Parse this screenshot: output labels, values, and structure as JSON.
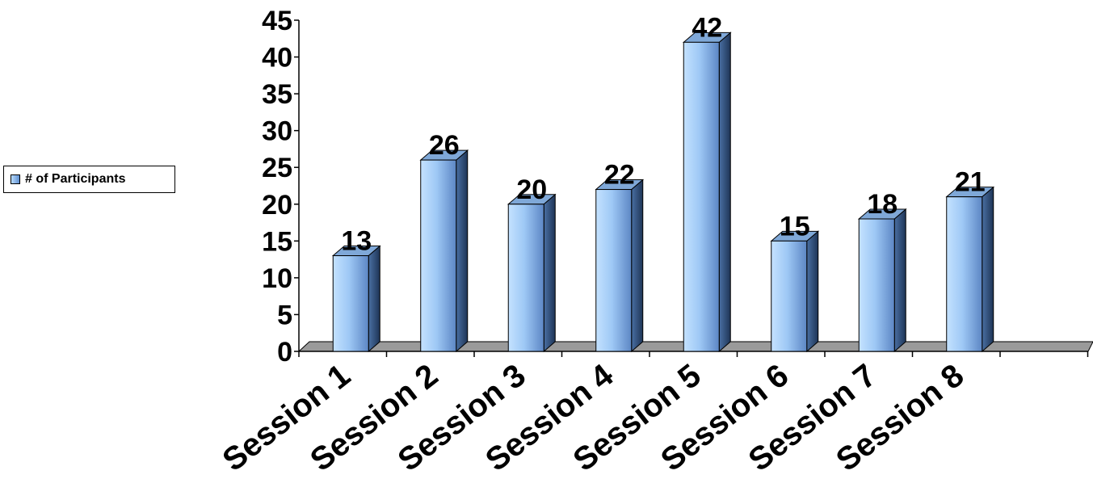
{
  "chart_data": {
    "type": "bar",
    "categories": [
      "Session 1",
      "Session 2",
      "Session 3",
      "Session 4",
      "Session 5",
      "Session 6",
      "Session 7",
      "Session 8"
    ],
    "series": [
      {
        "name": "# of Participants",
        "values": [
          13,
          26,
          20,
          22,
          42,
          15,
          18,
          21
        ]
      }
    ],
    "y_ticks": [
      "0",
      "5",
      "10",
      "15",
      "20",
      "25",
      "30",
      "35",
      "40",
      "45"
    ],
    "ylim": [
      0,
      45
    ],
    "title": "",
    "xlabel": "",
    "ylabel": "",
    "legend": {
      "label": "# of Participants",
      "placement": "left"
    },
    "data_labels": true,
    "grid": false,
    "style": "3d-column",
    "colors": {
      "bar_front": "#9ec8f5",
      "bar_side": "#3a5a88",
      "bar_top": "#7fa8d8",
      "floor": "#9a9a9a"
    }
  }
}
